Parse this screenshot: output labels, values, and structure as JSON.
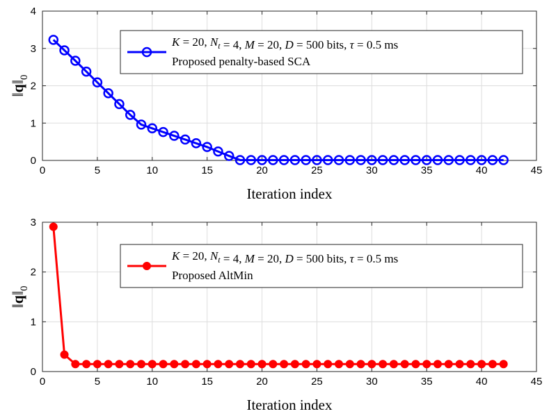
{
  "chart_data": [
    {
      "type": "line",
      "xlabel": "Iteration index",
      "ylabel": "‖q‖₀",
      "xlim": [
        0,
        45
      ],
      "ylim": [
        0,
        4
      ],
      "xticks": [
        0,
        5,
        10,
        15,
        20,
        25,
        30,
        35,
        40,
        45
      ],
      "yticks": [
        0,
        1,
        2,
        3,
        4
      ],
      "grid": true,
      "legend_position": "top-right",
      "legend_lines": [
        "K = 20,  N_t = 4,  M = 20, D = 500 bits, τ = 0.5 ms",
        "Proposed penalty-based SCA"
      ],
      "series": [
        {
          "name": "Proposed penalty-based SCA",
          "color": "#0000ff",
          "marker": "open-circle",
          "x": [
            1,
            2,
            3,
            4,
            5,
            6,
            7,
            8,
            9,
            10,
            11,
            12,
            13,
            14,
            15,
            16,
            17,
            18,
            19,
            20,
            21,
            22,
            23,
            24,
            25,
            26,
            27,
            28,
            29,
            30,
            31,
            32,
            33,
            34,
            35,
            36,
            37,
            38,
            39,
            40,
            41,
            42
          ],
          "values": [
            3.23,
            2.95,
            2.67,
            2.38,
            2.09,
            1.8,
            1.51,
            1.22,
            0.96,
            0.86,
            0.76,
            0.66,
            0.56,
            0.46,
            0.36,
            0.24,
            0.12,
            0.01,
            0.01,
            0.01,
            0.01,
            0.01,
            0.01,
            0.01,
            0.01,
            0.01,
            0.01,
            0.01,
            0.01,
            0.01,
            0.01,
            0.01,
            0.01,
            0.01,
            0.01,
            0.01,
            0.01,
            0.01,
            0.01,
            0.01,
            0.01,
            0.01
          ]
        }
      ]
    },
    {
      "type": "line",
      "xlabel": "Iteration index",
      "ylabel": "‖q‖₀",
      "xlim": [
        0,
        45
      ],
      "ylim": [
        0,
        3
      ],
      "xticks": [
        0,
        5,
        10,
        15,
        20,
        25,
        30,
        35,
        40,
        45
      ],
      "yticks": [
        0,
        1,
        2,
        3
      ],
      "grid": true,
      "legend_position": "top-right",
      "legend_lines": [
        "K = 20,  N_t = 4,  M = 20, D = 500 bits, τ = 0.5 ms",
        "Proposed AltMin"
      ],
      "series": [
        {
          "name": "Proposed AltMin",
          "color": "#ff0000",
          "marker": "filled-circle",
          "x": [
            1,
            2,
            3,
            4,
            5,
            6,
            7,
            8,
            9,
            10,
            11,
            12,
            13,
            14,
            15,
            16,
            17,
            18,
            19,
            20,
            21,
            22,
            23,
            24,
            25,
            26,
            27,
            28,
            29,
            30,
            31,
            32,
            33,
            34,
            35,
            36,
            37,
            38,
            39,
            40,
            41,
            42
          ],
          "values": [
            2.91,
            0.34,
            0.15,
            0.15,
            0.15,
            0.15,
            0.15,
            0.15,
            0.15,
            0.15,
            0.15,
            0.15,
            0.15,
            0.15,
            0.15,
            0.15,
            0.15,
            0.15,
            0.15,
            0.15,
            0.15,
            0.15,
            0.15,
            0.15,
            0.15,
            0.15,
            0.15,
            0.15,
            0.15,
            0.15,
            0.15,
            0.15,
            0.15,
            0.15,
            0.15,
            0.15,
            0.15,
            0.15,
            0.15,
            0.15,
            0.15,
            0.15
          ]
        }
      ]
    }
  ]
}
